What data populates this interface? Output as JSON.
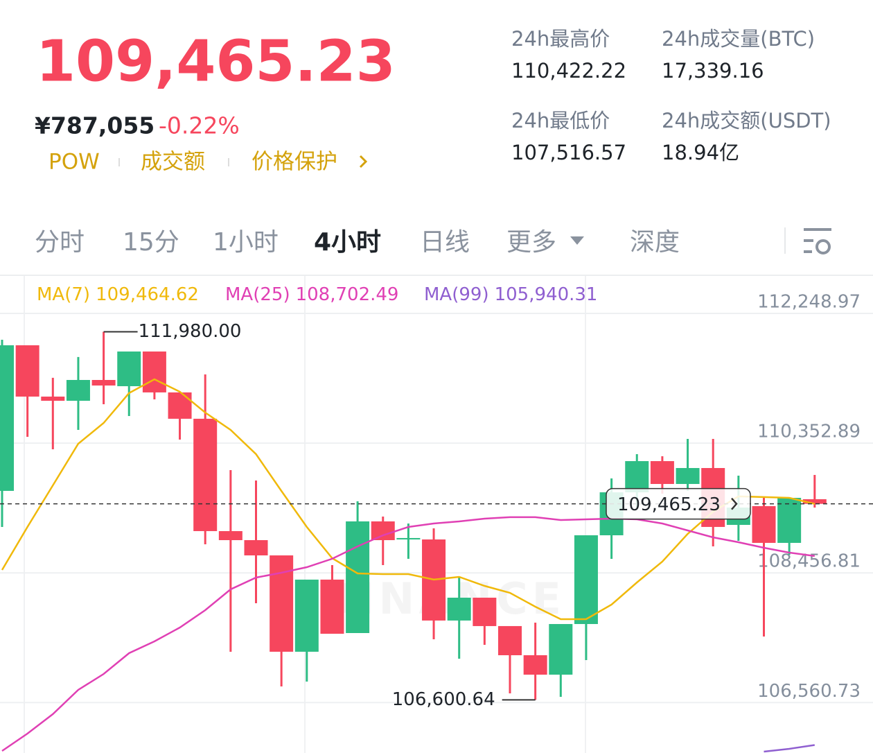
{
  "header": {
    "price": "109,465.23",
    "cny": "¥787,055",
    "change": "-0.22%",
    "tags": [
      "POW",
      "成交额",
      "价格保护"
    ]
  },
  "stats": [
    {
      "label": "24h最高价",
      "value": "110,422.22"
    },
    {
      "label": "24h成交量(BTC)",
      "value": "17,339.16"
    },
    {
      "label": "24h最低价",
      "value": "107,516.57"
    },
    {
      "label": "24h成交额(USDT)",
      "value": "18.94亿"
    }
  ],
  "tabs": [
    "分时",
    "15分",
    "1小时",
    "4小时",
    "日线",
    "更多",
    "深度"
  ],
  "active_tab": 3,
  "chart_data": {
    "type": "candlestick",
    "watermark": "BINANCE",
    "up_color": "#2ebd85",
    "down_color": "#f6465d",
    "ylim": [
      105824,
      112796
    ],
    "yticks": [
      {
        "value": 112248.97,
        "label": "112,248.97"
      },
      {
        "value": 110352.89,
        "label": "110,352.89"
      },
      {
        "value": 108456.81,
        "label": "108,456.81"
      },
      {
        "value": 106560.73,
        "label": "106,560.73"
      }
    ],
    "grid": true,
    "candles": {
      "open": [
        109655,
        111783,
        111033,
        110972,
        111276,
        111185,
        111692,
        111094,
        110709,
        109067,
        108935,
        108712,
        107304,
        108358,
        107577,
        109209,
        108945,
        108945,
        107760,
        108094,
        107679,
        107253,
        106969,
        107709,
        109006,
        109634,
        110090,
        109756,
        109989,
        109158,
        109432,
        108895,
        109533
      ],
      "high": [
        111864,
        111783,
        111307,
        111611,
        111980,
        111692,
        111692,
        111094,
        111357,
        109959,
        109807,
        108712,
        108358,
        108570,
        109503,
        109280,
        109178,
        109107,
        108388,
        108094,
        107679,
        107729,
        107709,
        109006,
        109837,
        110192,
        110161,
        110415,
        110415,
        109878,
        109553,
        109553,
        109888
      ],
      "low": [
        109128,
        110445,
        110263,
        110546,
        110921,
        110749,
        110992,
        110405,
        108874,
        107304,
        108013,
        106797,
        106868,
        107567,
        107577,
        108570,
        108662,
        107486,
        107202,
        107405,
        106696,
        106600.64,
        106645,
        107182,
        108662,
        109411,
        109614,
        109655,
        108844,
        108925,
        107527,
        108722,
        109411
      ],
      "close": [
        111783,
        111033,
        110972,
        111276,
        111195,
        111692,
        111094,
        110709,
        109067,
        108935,
        108712,
        107304,
        108358,
        107567,
        109209,
        108935,
        108966,
        107760,
        108094,
        107679,
        107253,
        106969,
        107709,
        109006,
        109634,
        110090,
        109756,
        109989,
        109128,
        109411,
        108895,
        109553,
        109465.23
      ]
    },
    "series": [
      {
        "name": "MA(7)",
        "color": "#f0b90b",
        "value_label": "109,464.62",
        "values": [
          108499,
          109128,
          109736,
          110344,
          110648,
          111084,
          111286,
          111104,
          110800,
          110546,
          110192,
          109655,
          109128,
          108672,
          108449,
          108439,
          108439,
          108358,
          108398,
          108266,
          108165,
          107962,
          107780,
          107780,
          107993,
          108317,
          108621,
          109026,
          109351,
          109574,
          109564,
          109553,
          109464.62
        ]
      },
      {
        "name": "MA(25)",
        "color": "#e040b4",
        "value_label": "108,702.49",
        "values": [
          105854,
          106108,
          106392,
          106746,
          106979,
          107283,
          107456,
          107658,
          107912,
          108216,
          108388,
          108459,
          108540,
          108662,
          108844,
          109006,
          109128,
          109178,
          109209,
          109249,
          109270,
          109270,
          109229,
          109239,
          109249,
          109239,
          109178,
          109077,
          108976,
          108905,
          108824,
          108753,
          108702.49
        ]
      },
      {
        "name": "MA(99)",
        "color": "#8f5fd0",
        "value_label": "105,940.31",
        "values": [
          null,
          null,
          null,
          null,
          null,
          null,
          null,
          null,
          null,
          null,
          null,
          null,
          null,
          null,
          null,
          null,
          null,
          null,
          null,
          null,
          null,
          null,
          null,
          null,
          null,
          null,
          null,
          null,
          null,
          null,
          105844,
          105885,
          105940.31
        ]
      }
    ],
    "current_price": {
      "value": 109465.23,
      "label": "109,465.23"
    },
    "annotations": [
      {
        "value": 111980,
        "label": "111,980.00"
      },
      {
        "value": 106600.64,
        "label": "106,600.64"
      }
    ]
  }
}
